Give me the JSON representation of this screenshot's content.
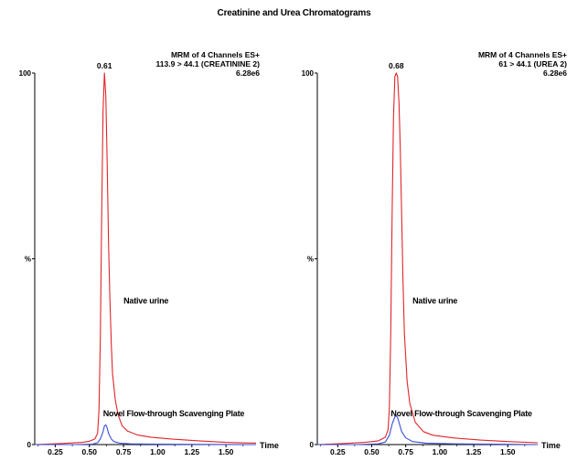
{
  "title": "Creatinine and Urea Chromatograms",
  "colors": {
    "native": "#e0252a",
    "scavenged": "#3a4fd8",
    "axis": "#000000"
  },
  "chart_data": [
    {
      "type": "line",
      "header": [
        "MRM of 4 Channels ES+",
        "113.9 > 44.1 (CREATININE 2)",
        "6.28e6"
      ],
      "peak_label": "0.61",
      "peak_x": 0.61,
      "xlabel": "Time",
      "ylabel": "%",
      "y_ticks": [
        {
          "value": 0,
          "label": "0"
        },
        {
          "value": 50,
          "label": "%"
        },
        {
          "value": 100,
          "label": "100"
        }
      ],
      "x_ticks": [
        {
          "value": 0.25,
          "label": "0.25"
        },
        {
          "value": 0.5,
          "label": "0.50"
        },
        {
          "value": 0.75,
          "label": "0.75"
        },
        {
          "value": 1.0,
          "label": "1.00"
        },
        {
          "value": 1.25,
          "label": "1.25"
        },
        {
          "value": 1.5,
          "label": "1.50"
        }
      ],
      "xlim": [
        0.1,
        1.72
      ],
      "ylim": [
        0,
        100
      ],
      "annotations": [
        {
          "text": "Native urine",
          "x": 0.75,
          "y": 38
        },
        {
          "text": "Novel Flow-through Scavenging Plate",
          "x": 0.6,
          "y": 7.6
        }
      ],
      "series": [
        {
          "name": "Native urine",
          "color_key": "native",
          "x": [
            0.1,
            0.3,
            0.45,
            0.5,
            0.54,
            0.56,
            0.57,
            0.58,
            0.59,
            0.6,
            0.61,
            0.62,
            0.63,
            0.64,
            0.65,
            0.66,
            0.67,
            0.69,
            0.71,
            0.74,
            0.78,
            0.85,
            0.95,
            1.1,
            1.3,
            1.5,
            1.72
          ],
          "y": [
            0,
            0.3,
            0.6,
            0.9,
            1.5,
            3,
            9,
            28,
            62,
            90,
            100,
            94,
            76,
            54,
            39,
            27,
            19,
            12,
            8,
            5,
            3.6,
            2.6,
            2,
            1.5,
            1,
            0.6,
            0.4
          ]
        },
        {
          "name": "Novel Flow-through Scavenging Plate",
          "color_key": "scavenged",
          "x": [
            0.1,
            0.4,
            0.52,
            0.56,
            0.58,
            0.6,
            0.61,
            0.62,
            0.63,
            0.64,
            0.66,
            0.68,
            0.72,
            0.8,
            1.0,
            1.3,
            1.72
          ],
          "y": [
            0,
            0,
            0.1,
            0.5,
            1.5,
            3.5,
            5,
            5.3,
            4.5,
            3,
            1.5,
            0.8,
            0.4,
            0.2,
            0.1,
            0.05,
            0
          ]
        }
      ]
    },
    {
      "type": "line",
      "header": [
        "MRM of 4 Channels ES+",
        "61 > 44.1 (UREA 2)",
        "6.28e6"
      ],
      "peak_label": "0.68",
      "peak_x": 0.68,
      "xlabel": "Time",
      "ylabel": "%",
      "y_ticks": [
        {
          "value": 0,
          "label": "0"
        },
        {
          "value": 50,
          "label": "%"
        },
        {
          "value": 100,
          "label": "100"
        }
      ],
      "x_ticks": [
        {
          "value": 0.25,
          "label": "0.25"
        },
        {
          "value": 0.5,
          "label": "0.50"
        },
        {
          "value": 0.75,
          "label": "0.75"
        },
        {
          "value": 1.0,
          "label": "1.00"
        },
        {
          "value": 1.25,
          "label": "1.25"
        },
        {
          "value": 1.5,
          "label": "1.50"
        }
      ],
      "xlim": [
        0.1,
        1.72
      ],
      "ylim": [
        0,
        100
      ],
      "annotations": [
        {
          "text": "Native urine",
          "x": 0.8,
          "y": 38
        },
        {
          "text": "Novel Flow-through Scavenging Plate",
          "x": 0.64,
          "y": 7.6
        }
      ],
      "series": [
        {
          "name": "Native urine",
          "color_key": "native",
          "x": [
            0.1,
            0.3,
            0.45,
            0.55,
            0.6,
            0.62,
            0.63,
            0.64,
            0.65,
            0.66,
            0.67,
            0.68,
            0.69,
            0.7,
            0.71,
            0.72,
            0.73,
            0.74,
            0.76,
            0.78,
            0.82,
            0.88,
            0.95,
            1.1,
            1.3,
            1.5,
            1.72
          ],
          "y": [
            0,
            0.3,
            0.6,
            1,
            2,
            4,
            10,
            30,
            62,
            88,
            99,
            100,
            99,
            92,
            80,
            62,
            44,
            30,
            17,
            11,
            6,
            3.5,
            2.5,
            1.8,
            1.2,
            0.8,
            0.5
          ]
        },
        {
          "name": "Novel Flow-through Scavenging Plate",
          "color_key": "scavenged",
          "x": [
            0.1,
            0.4,
            0.55,
            0.6,
            0.63,
            0.65,
            0.67,
            0.68,
            0.69,
            0.7,
            0.72,
            0.75,
            0.8,
            0.9,
            1.1,
            1.4,
            1.72
          ],
          "y": [
            0,
            0,
            0.2,
            0.7,
            2.5,
            5.5,
            7.5,
            7.8,
            7.2,
            6,
            3.5,
            1.8,
            0.8,
            0.4,
            0.2,
            0.1,
            0
          ]
        }
      ]
    }
  ]
}
